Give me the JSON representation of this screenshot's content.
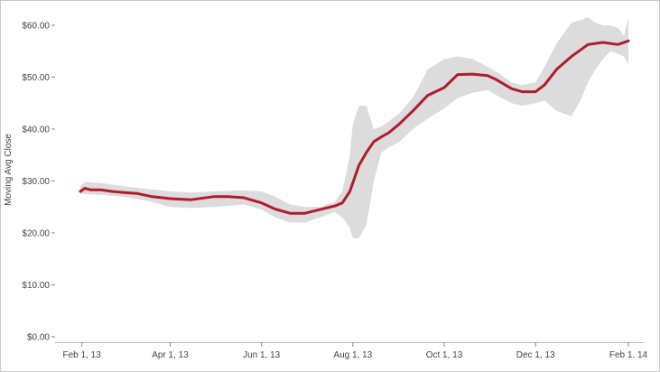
{
  "chart_data": {
    "type": "area",
    "title": "",
    "xlabel": "",
    "ylabel": "Moving Avg Close",
    "xlim": [
      "2013-01-31",
      "2014-02-01"
    ],
    "ylim": [
      0,
      60
    ],
    "grid": false,
    "colors": {
      "line": "#b01d2a",
      "band": "#dcdcdc",
      "axis": "#888888"
    },
    "x_ticks": [
      {
        "date": "2013-02-01",
        "label": "Feb 1, 13"
      },
      {
        "date": "2013-04-01",
        "label": "Apr 1, 13"
      },
      {
        "date": "2013-06-01",
        "label": "Jun 1, 13"
      },
      {
        "date": "2013-08-01",
        "label": "Aug 1, 13"
      },
      {
        "date": "2013-10-01",
        "label": "Oct 1, 13"
      },
      {
        "date": "2013-12-01",
        "label": "Dec 1, 13"
      },
      {
        "date": "2014-02-01",
        "label": "Feb 1, 14"
      }
    ],
    "y_ticks": [
      {
        "value": 0,
        "label": "$0.00"
      },
      {
        "value": 10,
        "label": "$10.00"
      },
      {
        "value": 20,
        "label": "$20.00"
      },
      {
        "value": 30,
        "label": "$30.00"
      },
      {
        "value": 40,
        "label": "$40.00"
      },
      {
        "value": 50,
        "label": "$50.00"
      },
      {
        "value": 60,
        "label": "$60.00"
      }
    ],
    "series": [
      {
        "x": [
          "2013-01-31",
          "2013-02-03",
          "2013-02-07",
          "2013-02-14",
          "2013-02-21",
          "2013-03-01",
          "2013-03-10",
          "2013-03-20",
          "2013-04-01",
          "2013-04-15",
          "2013-04-30",
          "2013-05-10",
          "2013-05-20",
          "2013-06-01",
          "2013-06-10",
          "2013-06-20",
          "2013-06-30",
          "2013-07-10",
          "2013-07-20",
          "2013-07-25",
          "2013-07-30",
          "2013-08-05",
          "2013-08-10",
          "2013-08-15",
          "2013-08-20",
          "2013-08-25",
          "2013-09-01",
          "2013-09-10",
          "2013-09-20",
          "2013-10-01",
          "2013-10-10",
          "2013-10-20",
          "2013-10-30",
          "2013-11-05",
          "2013-11-15",
          "2013-11-22",
          "2013-12-01",
          "2013-12-07",
          "2013-12-15",
          "2013-12-25",
          "2014-01-05",
          "2014-01-15",
          "2014-01-25",
          "2014-02-01"
        ],
        "values": [
          28.0,
          28.6,
          28.3,
          28.3,
          28.0,
          27.8,
          27.6,
          27.0,
          26.6,
          26.4,
          27.0,
          27.0,
          26.8,
          25.8,
          24.6,
          23.8,
          23.8,
          24.5,
          25.2,
          25.8,
          28.0,
          33.0,
          35.5,
          37.6,
          38.5,
          39.3,
          41.0,
          43.5,
          46.5,
          48.0,
          50.5,
          50.6,
          50.3,
          49.5,
          47.8,
          47.2,
          47.2,
          48.5,
          51.5,
          54.0,
          56.3,
          56.7,
          56.3,
          57.0
        ]
      },
      {
        "name": "",
        "role": "band",
        "x": [
          "2013-01-31",
          "2013-02-03",
          "2013-02-14",
          "2013-03-01",
          "2013-03-20",
          "2013-04-01",
          "2013-04-15",
          "2013-05-01",
          "2013-05-20",
          "2013-06-01",
          "2013-06-10",
          "2013-06-20",
          "2013-06-30",
          "2013-07-10",
          "2013-07-20",
          "2013-07-25",
          "2013-07-30",
          "2013-08-01",
          "2013-08-05",
          "2013-08-10",
          "2013-08-15",
          "2013-08-20",
          "2013-08-25",
          "2013-09-01",
          "2013-09-10",
          "2013-09-20",
          "2013-10-01",
          "2013-10-10",
          "2013-10-20",
          "2013-10-30",
          "2013-11-05",
          "2013-11-15",
          "2013-11-22",
          "2013-12-01",
          "2013-12-07",
          "2013-12-15",
          "2013-12-25",
          "2013-12-31",
          "2014-01-05",
          "2014-01-10",
          "2014-01-15",
          "2014-01-20",
          "2014-01-25",
          "2014-01-29",
          "2014-02-01"
        ],
        "upper": [
          29.0,
          29.8,
          29.6,
          29.0,
          28.4,
          28.0,
          27.8,
          28.0,
          28.2,
          28.0,
          27.0,
          25.5,
          25.0,
          25.0,
          26.0,
          28.0,
          35.0,
          41.0,
          44.5,
          44.5,
          40.0,
          40.5,
          41.5,
          43.0,
          46.0,
          51.5,
          53.5,
          54.0,
          53.5,
          52.0,
          51.0,
          49.0,
          48.5,
          49.0,
          52.0,
          56.5,
          60.5,
          61.0,
          61.5,
          60.5,
          60.0,
          60.0,
          59.5,
          58.0,
          61.5
        ],
        "lower": [
          27.5,
          27.5,
          27.3,
          27.0,
          26.0,
          25.0,
          24.8,
          25.0,
          25.5,
          24.5,
          23.0,
          22.0,
          22.0,
          23.0,
          24.0,
          23.0,
          21.0,
          19.0,
          19.0,
          21.5,
          30.0,
          35.5,
          36.5,
          37.5,
          40.0,
          42.0,
          44.0,
          46.0,
          47.0,
          47.5,
          46.5,
          45.0,
          44.5,
          45.0,
          45.5,
          43.5,
          42.5,
          45.5,
          49.0,
          51.5,
          53.5,
          55.0,
          54.5,
          54.0,
          52.5
        ]
      }
    ]
  }
}
